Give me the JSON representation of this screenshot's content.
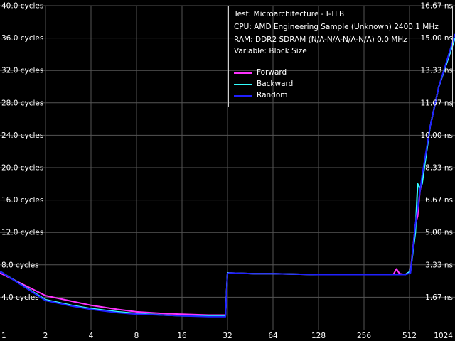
{
  "chart_data": {
    "type": "line",
    "xscale": "log2",
    "x_ticks": [
      "1",
      "2",
      "4",
      "8",
      "16",
      "32",
      "64",
      "128",
      "256",
      "512",
      "1024"
    ],
    "x_range": [
      1,
      1024
    ],
    "y_left_range": [
      0,
      40
    ],
    "y_left_ticks": [
      "4.0 cycles",
      "8.0 cycles",
      "12.0 cycles",
      "16.0 cycles",
      "20.0 cycles",
      "24.0 cycles",
      "28.0 cycles",
      "32.0 cycles",
      "36.0 cycles",
      "40.0 cycles"
    ],
    "y_right_ticks": [
      "1.67 ns",
      "3.33 ns",
      "5.00 ns",
      "6.67 ns",
      "8.33 ns",
      "10.00 ns",
      "11.67 ns",
      "13.33 ns",
      "15.00 ns",
      "16.67 ns"
    ],
    "grid": true,
    "legend_position": "top-right",
    "info": {
      "test": "Test: Microarchitecture - I-TLB",
      "cpu": "CPU: AMD Engineering Sample (Unknown) 2400.1 MHz",
      "ram": "RAM: DDR2 SDRAM (N/A-N/A-N/A-N/A) 0.0 MHz",
      "variable": "Variable: Block Size"
    },
    "series": [
      {
        "name": "Forward",
        "color": "#ff33ff",
        "x": [
          1,
          2,
          3,
          4,
          6,
          8,
          12,
          16,
          24,
          31,
          32,
          33,
          48,
          64,
          128,
          256,
          400,
          420,
          440,
          480,
          520,
          560,
          580,
          600,
          620,
          700,
          800,
          1024
        ],
        "y": [
          7.0,
          4.2,
          3.5,
          3.0,
          2.5,
          2.2,
          2.0,
          1.9,
          1.8,
          1.8,
          7.0,
          7.0,
          6.9,
          6.9,
          6.8,
          6.8,
          6.8,
          7.5,
          6.9,
          6.8,
          7.2,
          13.0,
          14.0,
          17.0,
          18.5,
          25.0,
          30.0,
          36.0
        ]
      },
      {
        "name": "Backward",
        "color": "#33ffff",
        "x": [
          1,
          2,
          3,
          4,
          6,
          8,
          12,
          16,
          24,
          31,
          32,
          33,
          48,
          64,
          128,
          256,
          400,
          480,
          520,
          560,
          580,
          600,
          620,
          700,
          800,
          1024
        ],
        "y": [
          7.2,
          3.7,
          3.0,
          2.6,
          2.2,
          2.0,
          1.8,
          1.7,
          1.7,
          1.7,
          7.0,
          7.0,
          6.9,
          6.9,
          6.8,
          6.8,
          6.8,
          6.8,
          7.2,
          12.0,
          18.0,
          17.5,
          18.0,
          25.0,
          30.0,
          36.0
        ]
      },
      {
        "name": "Random",
        "color": "#2020ff",
        "x": [
          1,
          2,
          3,
          4,
          6,
          8,
          12,
          16,
          24,
          31,
          32,
          33,
          48,
          64,
          128,
          256,
          400,
          480,
          520,
          560,
          580,
          600,
          620,
          700,
          800,
          1024
        ],
        "y": [
          7.2,
          3.6,
          2.9,
          2.5,
          2.1,
          1.9,
          1.8,
          1.7,
          1.6,
          1.6,
          6.9,
          7.0,
          6.9,
          6.9,
          6.8,
          6.8,
          6.8,
          6.8,
          7.0,
          13.0,
          15.0,
          17.0,
          19.0,
          25.0,
          30.0,
          36.5
        ]
      }
    ]
  }
}
